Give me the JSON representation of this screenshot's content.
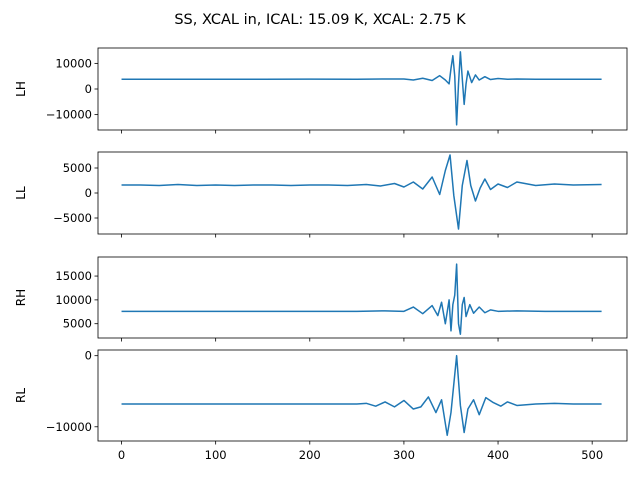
{
  "figure": {
    "title": "SS, XCAL in, ICAL: 15.09 K, XCAL: 2.75 K"
  },
  "chart_data": [
    {
      "type": "line",
      "ylabel": "LH",
      "xlim": [
        -25,
        537
      ],
      "ylim": [
        -16000,
        16000
      ],
      "yticks": [
        -10000,
        0,
        10000
      ],
      "ytick_labels": [
        "−10000",
        "0",
        "10000"
      ],
      "series": [
        {
          "color": "#1f77b4",
          "x": [
            0,
            50,
            100,
            150,
            200,
            250,
            280,
            300,
            310,
            320,
            330,
            338,
            344,
            348,
            350,
            352,
            354,
            356,
            358,
            360,
            362,
            364,
            366,
            368,
            372,
            376,
            380,
            386,
            392,
            400,
            410,
            420,
            440,
            470,
            510
          ],
          "y": [
            3800,
            3800,
            3800,
            3800,
            3850,
            3800,
            3900,
            3900,
            3500,
            4200,
            3300,
            5200,
            3500,
            2000,
            8000,
            13000,
            5000,
            -14000,
            2000,
            14500,
            4000,
            -6000,
            2000,
            7000,
            2500,
            5500,
            3500,
            4800,
            3700,
            4100,
            3800,
            3900,
            3800,
            3800,
            3800
          ]
        }
      ]
    },
    {
      "type": "line",
      "ylabel": "LL",
      "xlim": [
        -25,
        537
      ],
      "ylim": [
        -8200,
        8200
      ],
      "yticks": [
        -5000,
        0,
        5000
      ],
      "ytick_labels": [
        "−5000",
        "0",
        "5000"
      ],
      "series": [
        {
          "color": "#1f77b4",
          "x": [
            0,
            20,
            40,
            60,
            80,
            100,
            120,
            140,
            160,
            180,
            200,
            220,
            240,
            260,
            275,
            290,
            300,
            310,
            320,
            330,
            338,
            344,
            349,
            353,
            358,
            362,
            367,
            371,
            376,
            381,
            386,
            392,
            400,
            410,
            420,
            440,
            460,
            480,
            510
          ],
          "y": [
            1600,
            1600,
            1500,
            1700,
            1500,
            1600,
            1500,
            1600,
            1600,
            1500,
            1600,
            1600,
            1500,
            1700,
            1400,
            1900,
            1200,
            2200,
            800,
            3200,
            -300,
            4500,
            7600,
            -500,
            -7200,
            1500,
            6500,
            1500,
            -1600,
            1000,
            2800,
            700,
            1800,
            1100,
            2200,
            1500,
            1800,
            1600,
            1700
          ]
        }
      ]
    },
    {
      "type": "line",
      "ylabel": "RH",
      "xlim": [
        -25,
        537
      ],
      "ylim": [
        2000,
        19000
      ],
      "yticks": [
        5000,
        10000,
        15000
      ],
      "ytick_labels": [
        "5000",
        "10000",
        "15000"
      ],
      "series": [
        {
          "color": "#1f77b4",
          "x": [
            0,
            50,
            100,
            150,
            200,
            250,
            280,
            300,
            310,
            320,
            330,
            336,
            340,
            344,
            348,
            350,
            352,
            354,
            356,
            358,
            360,
            362,
            364,
            366,
            370,
            374,
            380,
            386,
            392,
            400,
            420,
            450,
            510
          ],
          "y": [
            7600,
            7600,
            7600,
            7600,
            7600,
            7600,
            7700,
            7600,
            8500,
            7100,
            8800,
            6700,
            9500,
            5000,
            10000,
            3500,
            9000,
            11000,
            17500,
            5000,
            2800,
            9000,
            10500,
            6500,
            9000,
            7200,
            8500,
            7300,
            7900,
            7600,
            7700,
            7600,
            7600
          ]
        }
      ]
    },
    {
      "type": "line",
      "ylabel": "RL",
      "xlim": [
        -25,
        537
      ],
      "ylim": [
        -12000,
        800
      ],
      "yticks": [
        -10000,
        0
      ],
      "ytick_labels": [
        "−10000",
        "0"
      ],
      "series": [
        {
          "color": "#1f77b4",
          "x": [
            0,
            50,
            100,
            150,
            200,
            250,
            260,
            270,
            280,
            290,
            300,
            310,
            318,
            326,
            334,
            340,
            346,
            350,
            356,
            360,
            364,
            368,
            374,
            380,
            387,
            395,
            403,
            410,
            420,
            440,
            460,
            480,
            510
          ],
          "y": [
            -6800,
            -6800,
            -6800,
            -6800,
            -6800,
            -6800,
            -6700,
            -7100,
            -6500,
            -7200,
            -6300,
            -7500,
            -7200,
            -5800,
            -8000,
            -6200,
            -11200,
            -8000,
            0,
            -7000,
            -10800,
            -7500,
            -6200,
            -8300,
            -5900,
            -6600,
            -7100,
            -6500,
            -7000,
            -6800,
            -6700,
            -6800,
            -6800
          ]
        }
      ]
    }
  ],
  "xaxis": {
    "ticks": [
      0,
      100,
      200,
      300,
      400,
      500
    ],
    "labels": [
      "0",
      "100",
      "200",
      "300",
      "400",
      "500"
    ]
  }
}
